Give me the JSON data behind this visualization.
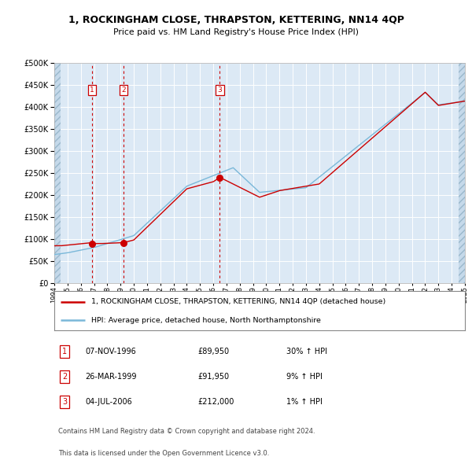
{
  "title": "1, ROCKINGHAM CLOSE, THRAPSTON, KETTERING, NN14 4QP",
  "subtitle": "Price paid vs. HM Land Registry's House Price Index (HPI)",
  "legend_line1": "1, ROCKINGHAM CLOSE, THRAPSTON, KETTERING, NN14 4QP (detached house)",
  "legend_line2": "HPI: Average price, detached house, North Northamptonshire",
  "footer1": "Contains HM Land Registry data © Crown copyright and database right 2024.",
  "footer2": "This data is licensed under the Open Government Licence v3.0.",
  "purchases": [
    {
      "num": 1,
      "date": "07-NOV-1996",
      "price": 89950,
      "pct": "30%",
      "dir": "↑",
      "x_year": 1996.85
    },
    {
      "num": 2,
      "date": "26-MAR-1999",
      "price": 91950,
      "pct": "9%",
      "dir": "↑",
      "x_year": 1999.23
    },
    {
      "num": 3,
      "date": "04-JUL-2006",
      "price": 212000,
      "pct": "1%",
      "dir": "↑",
      "x_year": 2006.5
    }
  ],
  "hpi_color": "#7ab8d9",
  "price_color": "#cc0000",
  "dashed_color": "#cc0000",
  "background_plot": "#dce9f5",
  "background_hatch": "#c5d9ea",
  "ylim": [
    0,
    500000
  ],
  "yticks": [
    0,
    50000,
    100000,
    150000,
    200000,
    250000,
    300000,
    350000,
    400000,
    450000,
    500000
  ],
  "xmin": 1994,
  "xmax": 2025
}
